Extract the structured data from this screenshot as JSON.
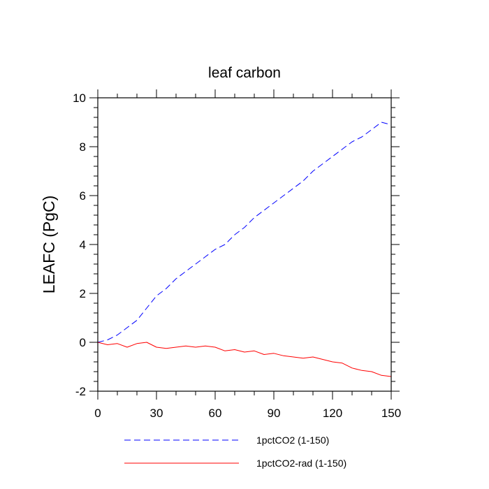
{
  "chart_data": {
    "type": "line",
    "title": "leaf carbon",
    "xlabel": "",
    "ylabel": "LEAFC  (PgC)",
    "xlim": [
      0,
      150
    ],
    "ylim": [
      -2,
      10
    ],
    "xticks": [
      0,
      30,
      60,
      90,
      120,
      150
    ],
    "xtick_labels": [
      "0",
      "30",
      "60",
      "90",
      "120",
      "150"
    ],
    "yticks": [
      -2,
      0,
      2,
      4,
      6,
      8,
      10
    ],
    "ytick_labels": [
      "-2",
      "0",
      "2",
      "4",
      "6",
      "8",
      "10"
    ],
    "grid": false,
    "legend_position": "bottom",
    "series": [
      {
        "name": "1pctCO2 (1-150)",
        "color": "#0000ff",
        "line_style": "dashed",
        "x": [
          0,
          5,
          10,
          15,
          20,
          25,
          30,
          35,
          40,
          45,
          50,
          55,
          60,
          65,
          70,
          75,
          80,
          85,
          90,
          95,
          100,
          105,
          110,
          115,
          120,
          125,
          130,
          135,
          140,
          145,
          150
        ],
        "y": [
          0.0,
          0.1,
          0.3,
          0.6,
          0.9,
          1.4,
          1.9,
          2.2,
          2.6,
          2.9,
          3.2,
          3.5,
          3.8,
          4.0,
          4.4,
          4.7,
          5.1,
          5.4,
          5.7,
          6.0,
          6.3,
          6.6,
          7.0,
          7.3,
          7.6,
          7.9,
          8.2,
          8.4,
          8.7,
          9.0,
          8.9
        ]
      },
      {
        "name": "1pctCO2-rad (1-150)",
        "color": "#ff0000",
        "line_style": "solid",
        "x": [
          0,
          5,
          10,
          15,
          20,
          25,
          30,
          35,
          40,
          45,
          50,
          55,
          60,
          65,
          70,
          75,
          80,
          85,
          90,
          95,
          100,
          105,
          110,
          115,
          120,
          125,
          130,
          135,
          140,
          145,
          150
        ],
        "y": [
          0.0,
          -0.1,
          -0.05,
          -0.2,
          -0.05,
          0.0,
          -0.2,
          -0.25,
          -0.2,
          -0.15,
          -0.2,
          -0.15,
          -0.2,
          -0.35,
          -0.3,
          -0.4,
          -0.35,
          -0.5,
          -0.45,
          -0.55,
          -0.6,
          -0.65,
          -0.6,
          -0.7,
          -0.8,
          -0.85,
          -1.05,
          -1.15,
          -1.2,
          -1.35,
          -1.4
        ]
      }
    ]
  }
}
